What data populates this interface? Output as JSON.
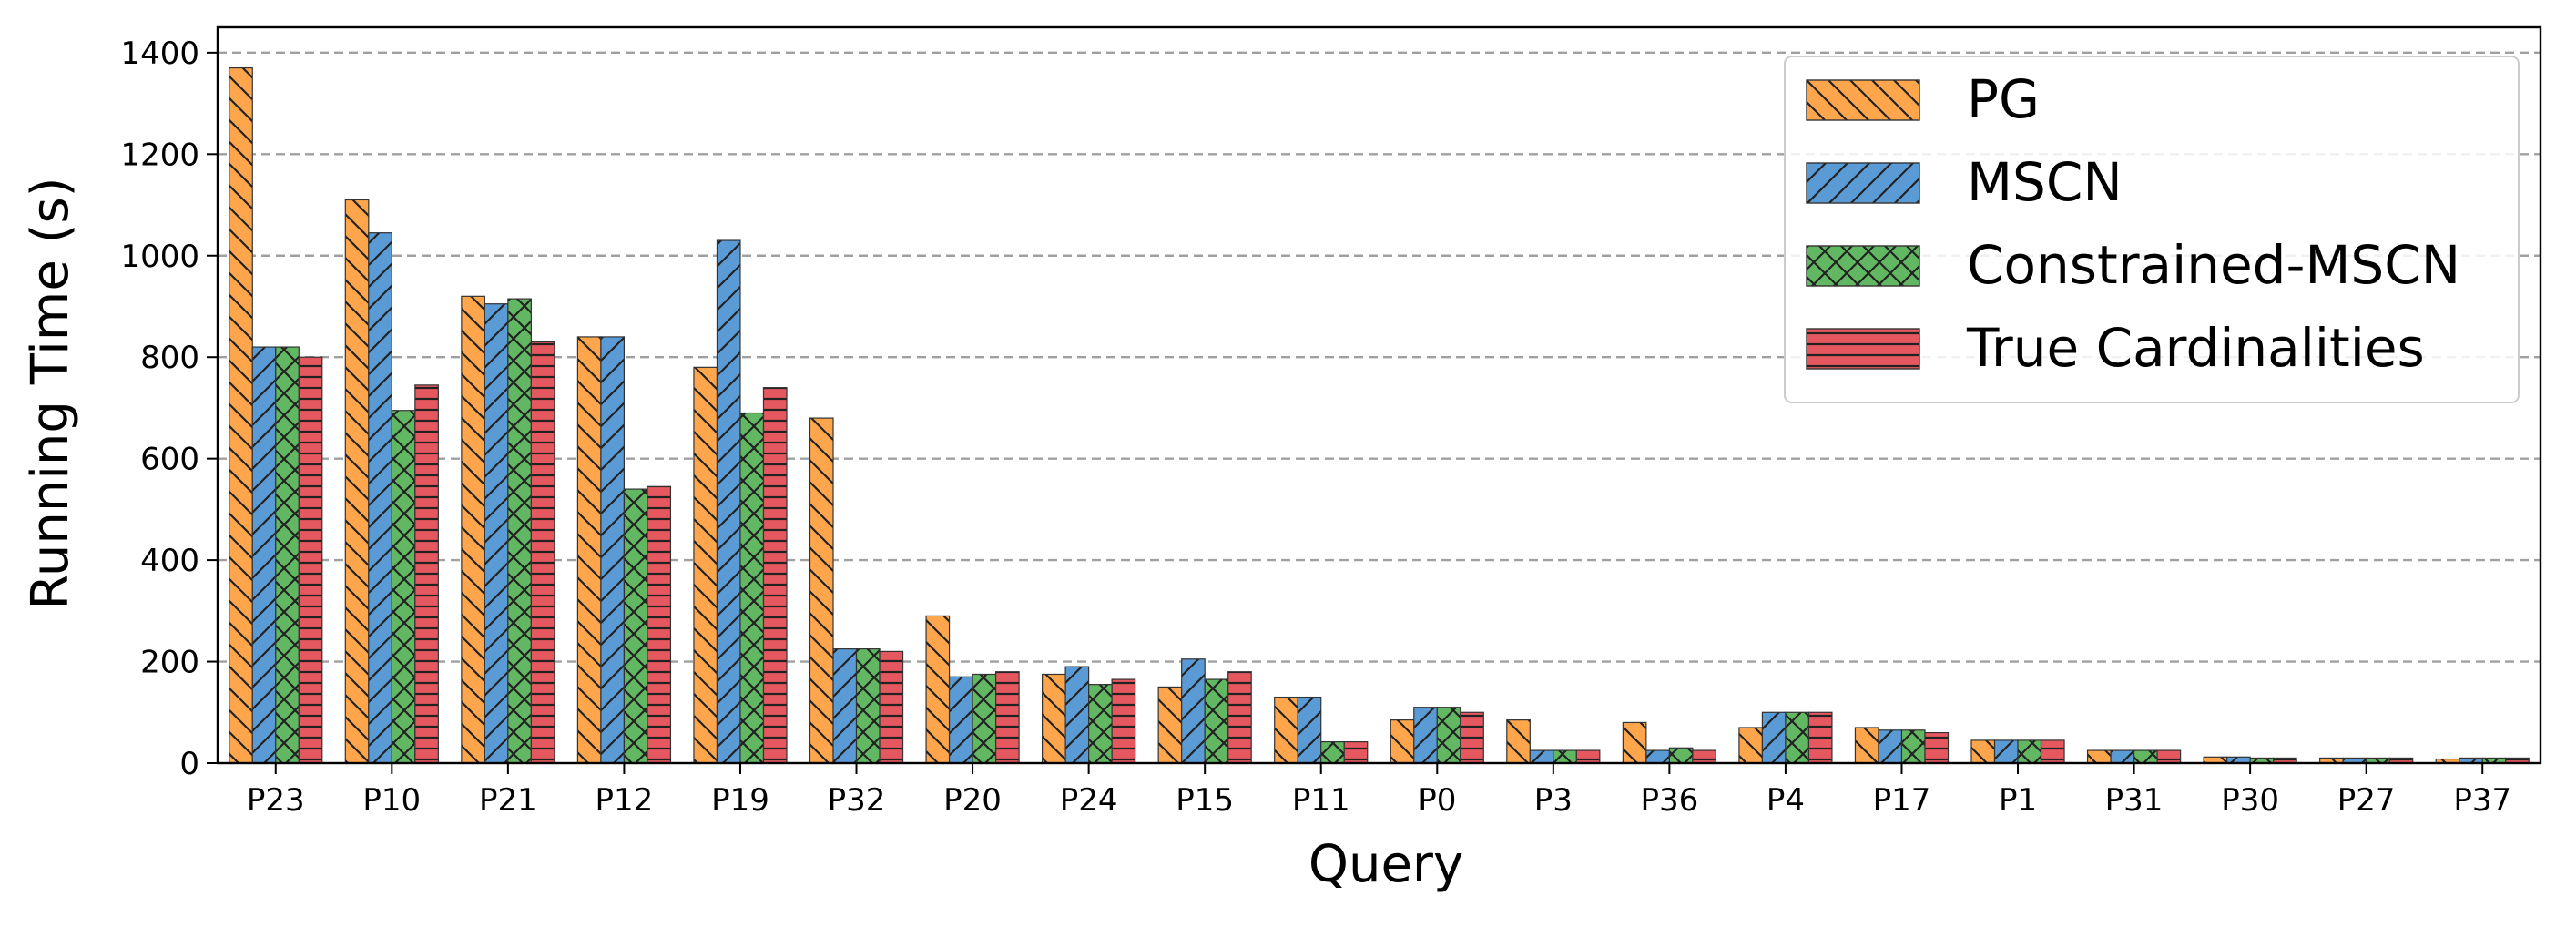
{
  "chart_data": {
    "type": "bar",
    "xlabel": "Query",
    "ylabel": "Running Time (s)",
    "ylim": [
      0,
      1450
    ],
    "yticks": [
      0,
      200,
      400,
      600,
      800,
      1000,
      1200,
      1400
    ],
    "grid": "y-dashed",
    "legend_position": "top-right",
    "categories": [
      "P23",
      "P10",
      "P21",
      "P12",
      "P19",
      "P32",
      "P20",
      "P24",
      "P15",
      "P11",
      "P0",
      "P3",
      "P36",
      "P4",
      "P17",
      "P1",
      "P31",
      "P30",
      "P27",
      "P37"
    ],
    "series": [
      {
        "name": "PG",
        "color": "#ffa64d",
        "hatch": "backslash",
        "values": [
          1370,
          1110,
          920,
          840,
          780,
          680,
          290,
          175,
          150,
          130,
          85,
          85,
          80,
          70,
          70,
          45,
          25,
          12,
          10,
          8
        ]
      },
      {
        "name": "MSCN",
        "color": "#5a9bd5",
        "hatch": "slash",
        "values": [
          820,
          1045,
          905,
          840,
          1030,
          225,
          170,
          190,
          205,
          130,
          110,
          25,
          25,
          100,
          65,
          45,
          25,
          12,
          10,
          10
        ]
      },
      {
        "name": "Constrained-MSCN",
        "color": "#62b862",
        "hatch": "cross",
        "values": [
          820,
          695,
          915,
          540,
          690,
          225,
          175,
          155,
          165,
          42,
          110,
          25,
          30,
          100,
          65,
          45,
          25,
          10,
          10,
          10
        ]
      },
      {
        "name": "True Cardinalities",
        "color": "#e6585f",
        "hatch": "horizontal",
        "values": [
          800,
          745,
          830,
          545,
          740,
          220,
          180,
          165,
          180,
          42,
          100,
          25,
          25,
          100,
          60,
          45,
          25,
          10,
          10,
          10
        ]
      }
    ]
  }
}
